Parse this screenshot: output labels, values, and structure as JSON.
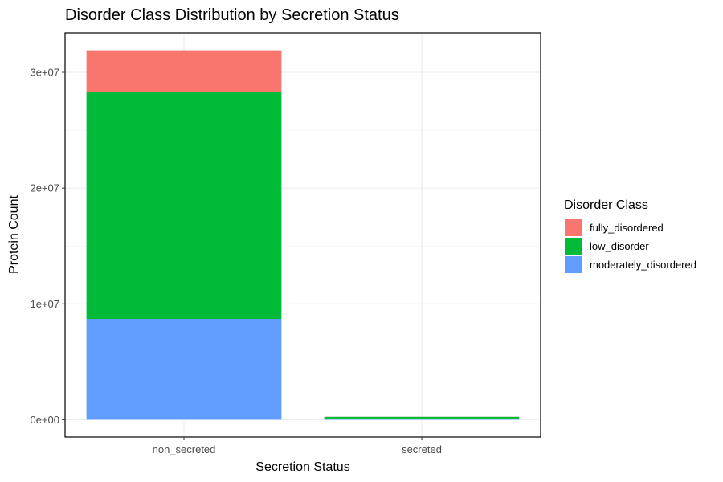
{
  "chart_data": {
    "type": "bar",
    "stacked": true,
    "title": "Disorder Class Distribution by Secretion Status",
    "xlabel": "Secretion Status",
    "ylabel": "Protein Count",
    "categories": [
      "non_secreted",
      "secreted"
    ],
    "series": [
      {
        "name": "moderately_disordered",
        "color": "#619CFF",
        "values": [
          8700000,
          100000
        ]
      },
      {
        "name": "low_disorder",
        "color": "#00BA38",
        "values": [
          19600000,
          150000
        ]
      },
      {
        "name": "fully_disordered",
        "color": "#F8766D",
        "values": [
          3600000,
          10000
        ]
      }
    ],
    "ylim": [
      -1500000,
      33400000
    ],
    "yticks": [
      0,
      10000000,
      20000000,
      30000000
    ],
    "ytick_labels": [
      "0e+00",
      "1e+07",
      "2e+07",
      "3e+07"
    ],
    "legend": {
      "title": "Disorder Class",
      "position": "right",
      "entries": [
        "fully_disordered",
        "low_disorder",
        "moderately_disordered"
      ]
    },
    "grid": true
  }
}
